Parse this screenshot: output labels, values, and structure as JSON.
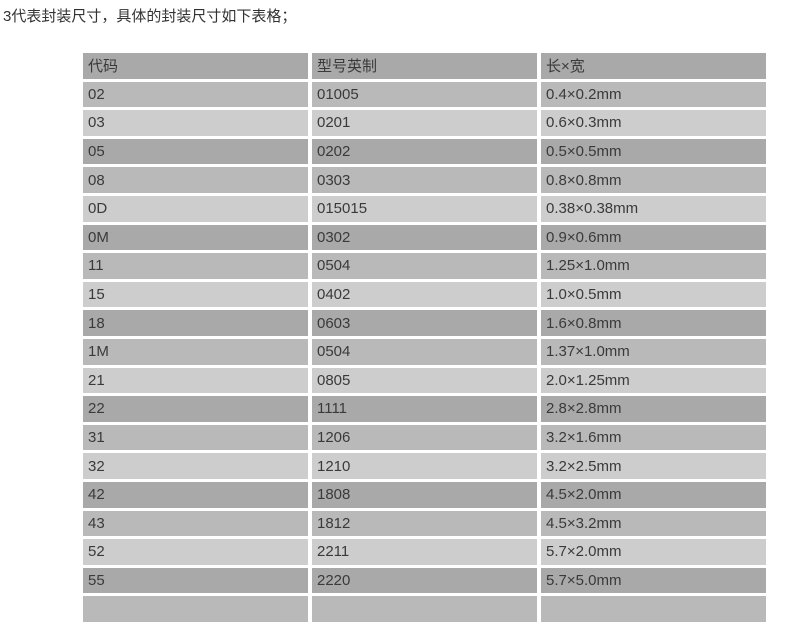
{
  "intro_text": "3代表封装尺寸，具体的封装尺寸如下表格；",
  "table": {
    "headers": [
      "代码",
      "型号英制",
      "长×宽"
    ],
    "rows": [
      {
        "code": "02",
        "model": "01005",
        "size": "0.4×0.2mm"
      },
      {
        "code": "03",
        "model": "0201",
        "size": "0.6×0.3mm"
      },
      {
        "code": "05",
        "model": "0202",
        "size": "0.5×0.5mm"
      },
      {
        "code": "08",
        "model": "0303",
        "size": "0.8×0.8mm"
      },
      {
        "code": "0D",
        "model": "015015",
        "size": "0.38×0.38mm"
      },
      {
        "code": "0M",
        "model": "0302",
        "size": "0.9×0.6mm"
      },
      {
        "code": "11",
        "model": "0504",
        "size": "1.25×1.0mm"
      },
      {
        "code": "15",
        "model": "0402",
        "size": "1.0×0.5mm"
      },
      {
        "code": "18",
        "model": "0603",
        "size": "1.6×0.8mm"
      },
      {
        "code": "1M",
        "model": "0504",
        "size": "1.37×1.0mm"
      },
      {
        "code": "21",
        "model": "0805",
        "size": "2.0×1.25mm"
      },
      {
        "code": "22",
        "model": "1111",
        "size": "2.8×2.8mm"
      },
      {
        "code": "31",
        "model": "1206",
        "size": "3.2×1.6mm"
      },
      {
        "code": "32",
        "model": "1210",
        "size": "3.2×2.5mm"
      },
      {
        "code": "42",
        "model": "1808",
        "size": "4.5×2.0mm"
      },
      {
        "code": "43",
        "model": "1812",
        "size": "4.5×3.2mm"
      },
      {
        "code": "52",
        "model": "2211",
        "size": "5.7×2.0mm"
      },
      {
        "code": "55",
        "model": "2220",
        "size": "5.7×5.0mm"
      },
      {
        "code": "",
        "model": "",
        "size": ""
      }
    ],
    "row_colors": {
      "dark": "#a9a9a9",
      "medium": "#b9b9b9",
      "light": "#cdcdcd"
    }
  }
}
